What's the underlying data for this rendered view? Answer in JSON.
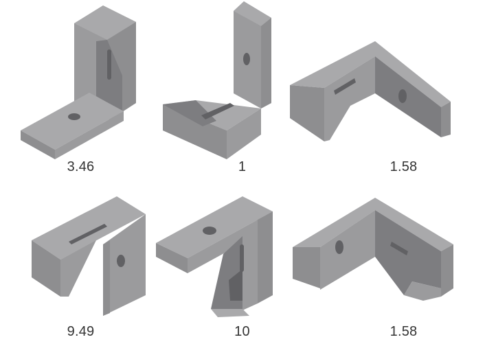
{
  "items": [
    {
      "score": "3.46",
      "icon": "l-bracket-slotted-upright-icon"
    },
    {
      "score": "1",
      "icon": "l-bracket-tall-back-slotted-base-icon"
    },
    {
      "score": "1.58",
      "icon": "angle-bracket-slot-left-icon"
    },
    {
      "score": "9.49",
      "icon": "bracket-slotted-top-gusset-icon"
    },
    {
      "score": "10",
      "icon": "bracket-gusset-pocket-icon"
    },
    {
      "score": "1.58",
      "icon": "angle-bracket-slot-right-icon"
    }
  ]
}
